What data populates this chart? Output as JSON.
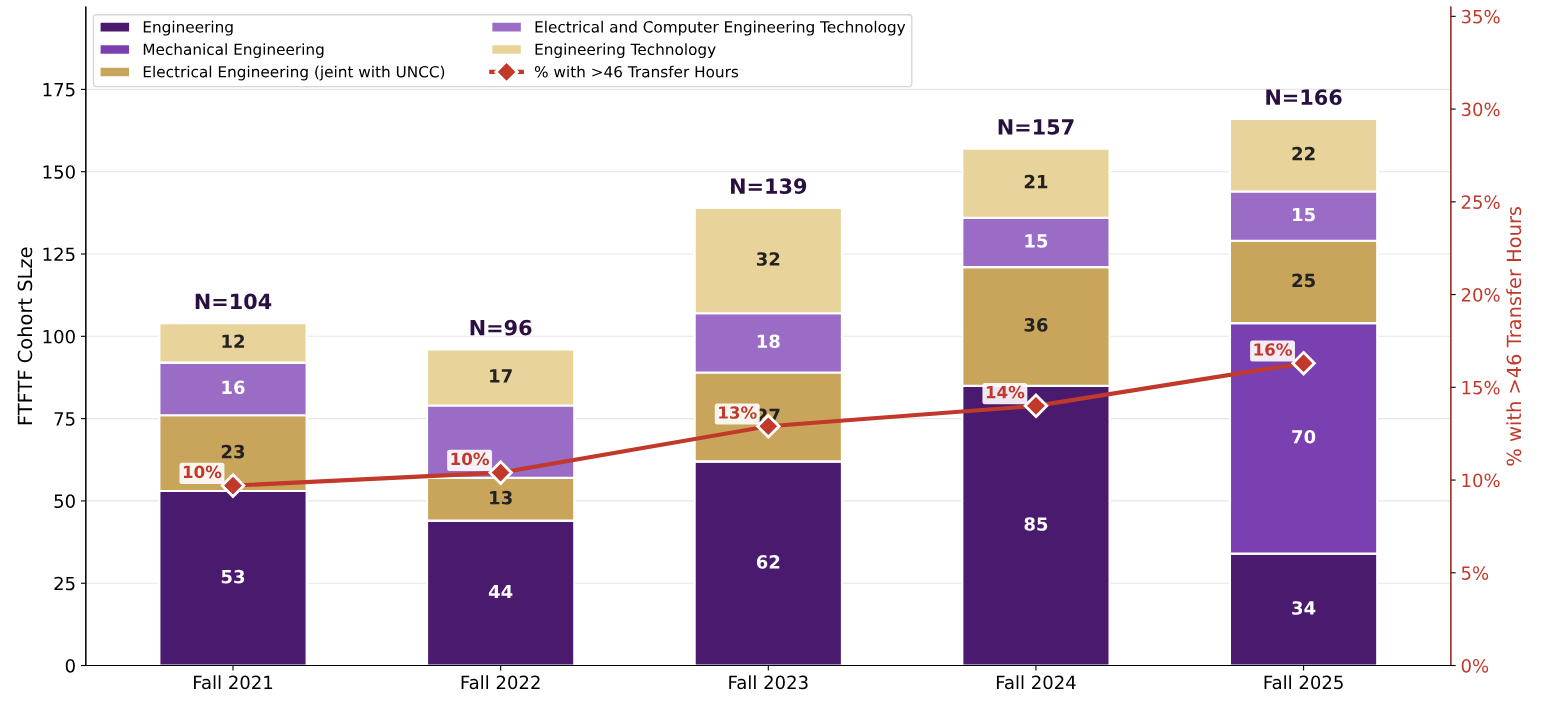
{
  "chart_data": {
    "type": "bar",
    "stacked": true,
    "ylabel": "FTFTF Cohort SLze",
    "y2label": "% with >46 Transfer Hours",
    "categories": [
      "Fall 2021",
      "Fall 2022",
      "Fall 2023",
      "Fall 2024",
      "Fall 2025"
    ],
    "series": [
      {
        "name": "Engineering",
        "color": "#4a1a6e",
        "values": [
          53,
          44,
          62,
          85,
          34
        ],
        "value_labels": [
          "53",
          "44",
          "62",
          "85",
          "34"
        ]
      },
      {
        "name": "Mechanical Engineering",
        "color": "#7a3fb0",
        "values": [
          0,
          0,
          0,
          0,
          70
        ],
        "value_labels": [
          null,
          null,
          null,
          null,
          "70"
        ]
      },
      {
        "name": "Electrical Engineering (jeint with UNCC)",
        "color": "#c9a55c",
        "values": [
          23,
          13,
          27,
          36,
          25
        ],
        "value_labels": [
          "23",
          "13",
          "27",
          "36",
          "25"
        ]
      },
      {
        "name": "Electrical and Computer Engineering Technology",
        "color": "#9b6cc6",
        "values": [
          16,
          22,
          18,
          15,
          15
        ],
        "value_labels": [
          "16",
          null,
          "18",
          "15",
          "15"
        ]
      },
      {
        "name": "Engineering Technology",
        "color": "#e8d49a",
        "values": [
          12,
          17,
          32,
          21,
          22
        ],
        "value_labels": [
          "12",
          "17",
          "32",
          "21",
          "22"
        ]
      },
      {
        "name": "% with >46 Transfer Hours",
        "type": "line",
        "axis": "y2",
        "color": "#c0392b",
        "marker": "diamond",
        "line_style": "solid",
        "values": [
          9.7,
          10.4,
          12.9,
          14.0,
          16.3
        ],
        "value_labels": [
          "10%",
          "10%",
          "13%",
          "14%",
          "16%"
        ]
      }
    ],
    "totals": [
      "N=104",
      "N=96",
      "N=139",
      "N=157",
      "N=166"
    ],
    "ylim": [
      0,
      200
    ],
    "yticks": [
      0,
      25,
      50,
      75,
      100,
      125,
      150,
      175
    ],
    "y2lim": [
      0,
      35.5
    ],
    "y2ticks": [
      {
        "value": 0,
        "label": "0%"
      },
      {
        "value": 5,
        "label": "5%"
      },
      {
        "value": 10,
        "label": "10%"
      },
      {
        "value": 15,
        "label": "15%"
      },
      {
        "value": 20,
        "label": "20%"
      },
      {
        "value": 25,
        "label": "25%"
      },
      {
        "value": 30,
        "label": "30%"
      },
      {
        "value": 35,
        "label": "35%"
      }
    ],
    "grid": "y",
    "legend": "top left"
  }
}
